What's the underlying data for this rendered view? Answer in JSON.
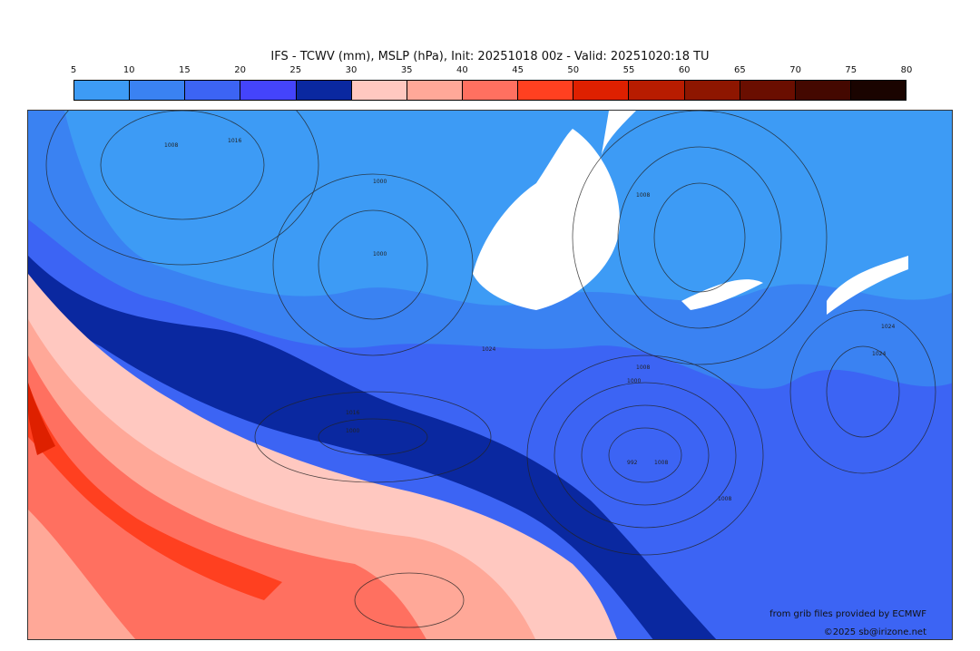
{
  "title": "IFS - TCWV (mm), MSLP (hPa), Init: 20251018 00z - Valid: 20251020:18 TU",
  "colorbar": {
    "ticks": [
      "5",
      "10",
      "15",
      "20",
      "25",
      "30",
      "35",
      "40",
      "45",
      "50",
      "55",
      "60",
      "65",
      "70",
      "75",
      "80"
    ],
    "colors": [
      "#3d9bf5",
      "#3a82f2",
      "#3c64f4",
      "#4444fb",
      "#0a28a0",
      "#ffc8c0",
      "#ffa898",
      "#ff7060",
      "#ff4020",
      "#de2000",
      "#b81c00",
      "#8e1600",
      "#6a0e00",
      "#440800",
      "#1a0400"
    ]
  },
  "credits": {
    "source": "from grib files provided by ECMWF",
    "copyright": "©2025 sb@irizone.net"
  },
  "isobar_labels": [
    "1008",
    "1016",
    "1000",
    "1000",
    "1024",
    "1008",
    "1024",
    "1008",
    "1008",
    "1016",
    "1024",
    "1000",
    "1000",
    "992",
    "1008"
  ]
}
